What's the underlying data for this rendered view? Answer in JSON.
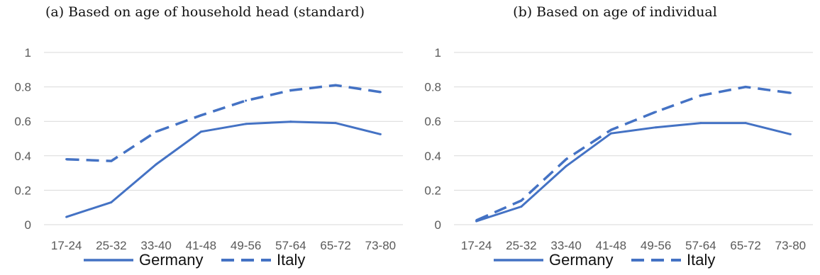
{
  "figure": {
    "series_color": "#4472C4",
    "grid_color": "#D9D9D9",
    "legend": [
      "Germany",
      "Italy"
    ]
  },
  "chart_data": [
    {
      "type": "line",
      "title": "(a) Based on age of household head (standard)",
      "xlabel": "",
      "ylabel": "",
      "categories": [
        "17-24",
        "25-32",
        "33-40",
        "41-48",
        "49-56",
        "57-64",
        "65-72",
        "73-80"
      ],
      "ylim": [
        0,
        1
      ],
      "yticks": [
        "0",
        "0.2",
        "0.4",
        "0.6",
        "0.8",
        "1"
      ],
      "grid": true,
      "legend_position": "bottom",
      "series": [
        {
          "name": "Germany",
          "style": "solid",
          "values": [
            0.045,
            0.13,
            0.35,
            0.54,
            0.585,
            0.598,
            0.59,
            0.525
          ]
        },
        {
          "name": "Italy",
          "style": "dashed",
          "values": [
            0.38,
            0.37,
            0.54,
            0.635,
            0.72,
            0.78,
            0.81,
            0.77
          ]
        }
      ]
    },
    {
      "type": "line",
      "title": "(b) Based on age of individual",
      "xlabel": "",
      "ylabel": "",
      "categories": [
        "17-24",
        "25-32",
        "33-40",
        "41-48",
        "49-56",
        "57-64",
        "65-72",
        "73-80"
      ],
      "ylim": [
        0,
        1
      ],
      "yticks": [
        "0",
        "0.2",
        "0.4",
        "0.6",
        "0.8",
        "1"
      ],
      "grid": true,
      "legend_position": "bottom",
      "series": [
        {
          "name": "Germany",
          "style": "solid",
          "values": [
            0.02,
            0.105,
            0.34,
            0.53,
            0.565,
            0.59,
            0.59,
            0.525
          ]
        },
        {
          "name": "Italy",
          "style": "dashed",
          "values": [
            0.025,
            0.14,
            0.38,
            0.55,
            0.655,
            0.75,
            0.8,
            0.765
          ]
        }
      ]
    }
  ]
}
